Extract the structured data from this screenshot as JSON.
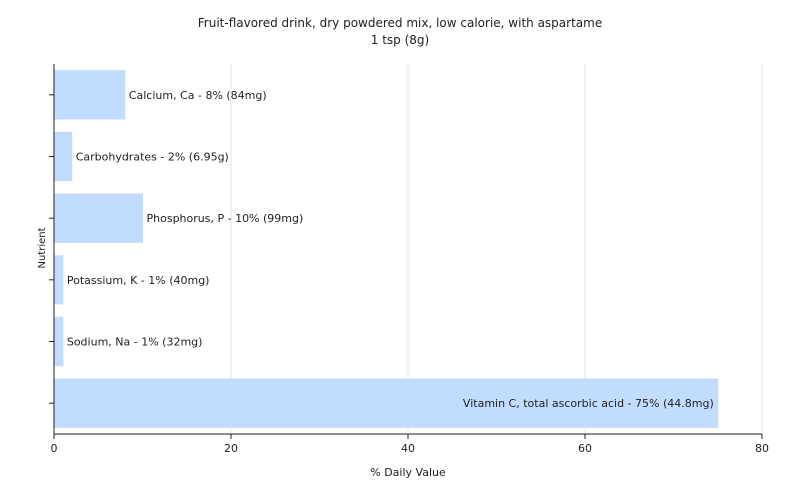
{
  "chart_data": {
    "type": "bar",
    "orientation": "horizontal",
    "title": "Fruit-flavored drink, dry powdered mix, low calorie, with aspartame",
    "subtitle": "1 tsp (8g)",
    "xlabel": "% Daily Value",
    "ylabel": "Nutrient",
    "xlim": [
      0,
      80
    ],
    "xticks": [
      0,
      20,
      40,
      60,
      80
    ],
    "grid": true,
    "bar_color": "#c2dcff",
    "categories": [
      "Calcium, Ca",
      "Carbohydrates",
      "Phosphorus, P",
      "Potassium, K",
      "Sodium, Na",
      "Vitamin C, total ascorbic acid"
    ],
    "values": [
      8,
      2,
      10,
      1,
      1,
      75
    ],
    "labels": [
      "Calcium, Ca - 8% (84mg)",
      "Carbohydrates - 2% (6.95g)",
      "Phosphorus, P - 10% (99mg)",
      "Potassium, K - 1% (40mg)",
      "Sodium, Na - 1% (32mg)",
      "Vitamin C, total ascorbic acid - 75% (44.8mg)"
    ]
  }
}
